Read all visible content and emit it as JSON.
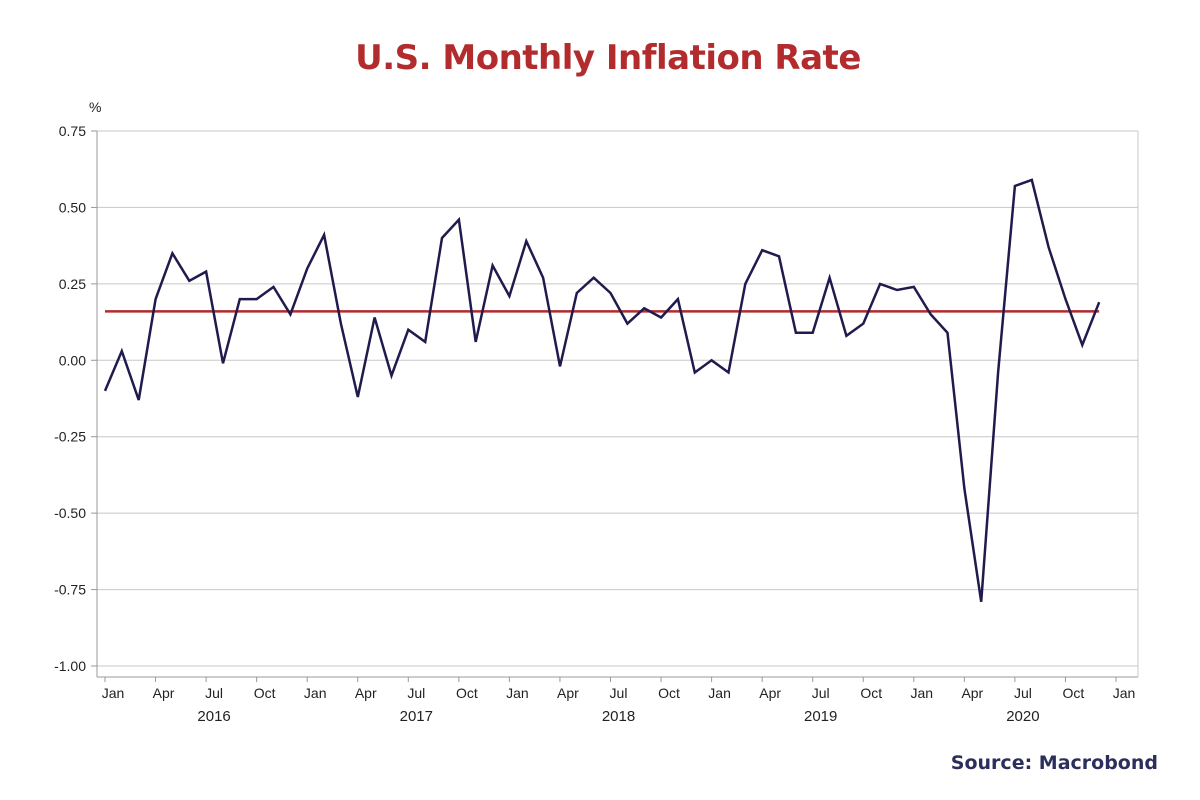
{
  "chart_data": {
    "type": "line",
    "title": "U.S. Monthly Inflation Rate",
    "ylabel": "%",
    "xlabel": "",
    "ylim": [
      -1.0,
      0.75
    ],
    "y_ticks": [
      0.75,
      0.5,
      0.25,
      0.0,
      -0.25,
      -0.5,
      -0.75,
      -1.0
    ],
    "y_tick_labels": [
      "0.75",
      "0.50",
      "0.25",
      "0.00",
      "-0.25",
      "-0.50",
      "-0.75",
      "-1.00"
    ],
    "x_tick_labels": [
      {
        "month_index": 0,
        "label": "Jan"
      },
      {
        "month_index": 3,
        "label": "Apr"
      },
      {
        "month_index": 6,
        "label": "Jul"
      },
      {
        "month_index": 9,
        "label": "Oct"
      },
      {
        "month_index": 12,
        "label": "Jan"
      },
      {
        "month_index": 15,
        "label": "Apr"
      },
      {
        "month_index": 18,
        "label": "Jul"
      },
      {
        "month_index": 21,
        "label": "Oct"
      },
      {
        "month_index": 24,
        "label": "Jan"
      },
      {
        "month_index": 27,
        "label": "Apr"
      },
      {
        "month_index": 30,
        "label": "Jul"
      },
      {
        "month_index": 33,
        "label": "Oct"
      },
      {
        "month_index": 36,
        "label": "Jan"
      },
      {
        "month_index": 39,
        "label": "Apr"
      },
      {
        "month_index": 42,
        "label": "Jul"
      },
      {
        "month_index": 45,
        "label": "Oct"
      },
      {
        "month_index": 48,
        "label": "Jan"
      },
      {
        "month_index": 51,
        "label": "Apr"
      },
      {
        "month_index": 54,
        "label": "Jul"
      },
      {
        "month_index": 57,
        "label": "Oct"
      },
      {
        "month_index": 60,
        "label": "Jan"
      }
    ],
    "year_labels": [
      {
        "month_index": 6,
        "label": "2016"
      },
      {
        "month_index": 18,
        "label": "2017"
      },
      {
        "month_index": 30,
        "label": "2018"
      },
      {
        "month_index": 42,
        "label": "2019"
      },
      {
        "month_index": 54,
        "label": "2020"
      }
    ],
    "series": [
      {
        "name": "Monthly inflation rate",
        "color": "#1f1b4d",
        "values": [
          -0.1,
          0.03,
          -0.13,
          0.2,
          0.35,
          0.26,
          0.29,
          -0.01,
          0.2,
          0.2,
          0.24,
          0.15,
          0.3,
          0.41,
          0.12,
          -0.12,
          0.14,
          -0.05,
          0.1,
          0.06,
          0.4,
          0.46,
          0.06,
          0.31,
          0.21,
          0.39,
          0.27,
          -0.02,
          0.22,
          0.27,
          0.22,
          0.12,
          0.17,
          0.14,
          0.2,
          -0.04,
          0.0,
          -0.04,
          0.25,
          0.36,
          0.34,
          0.09,
          0.09,
          0.27,
          0.08,
          0.12,
          0.25,
          0.23,
          0.24,
          0.15,
          0.09,
          -0.42,
          -0.79,
          -0.04,
          0.57,
          0.59,
          0.37,
          0.2,
          0.05,
          0.19
        ]
      },
      {
        "name": "Average",
        "color": "#b22b2d",
        "values": [
          0.16,
          0.16
        ]
      }
    ],
    "reference_line": {
      "name": "Average",
      "value": 0.16,
      "start_index": 0,
      "end_index": 59
    },
    "grid": true
  },
  "source": "Source: Macrobond",
  "colors": {
    "title": "#b22b2d",
    "line": "#1f1b4d",
    "average": "#b22b2d",
    "source": "#2c2f5c",
    "grid": "#c8c8c8"
  }
}
